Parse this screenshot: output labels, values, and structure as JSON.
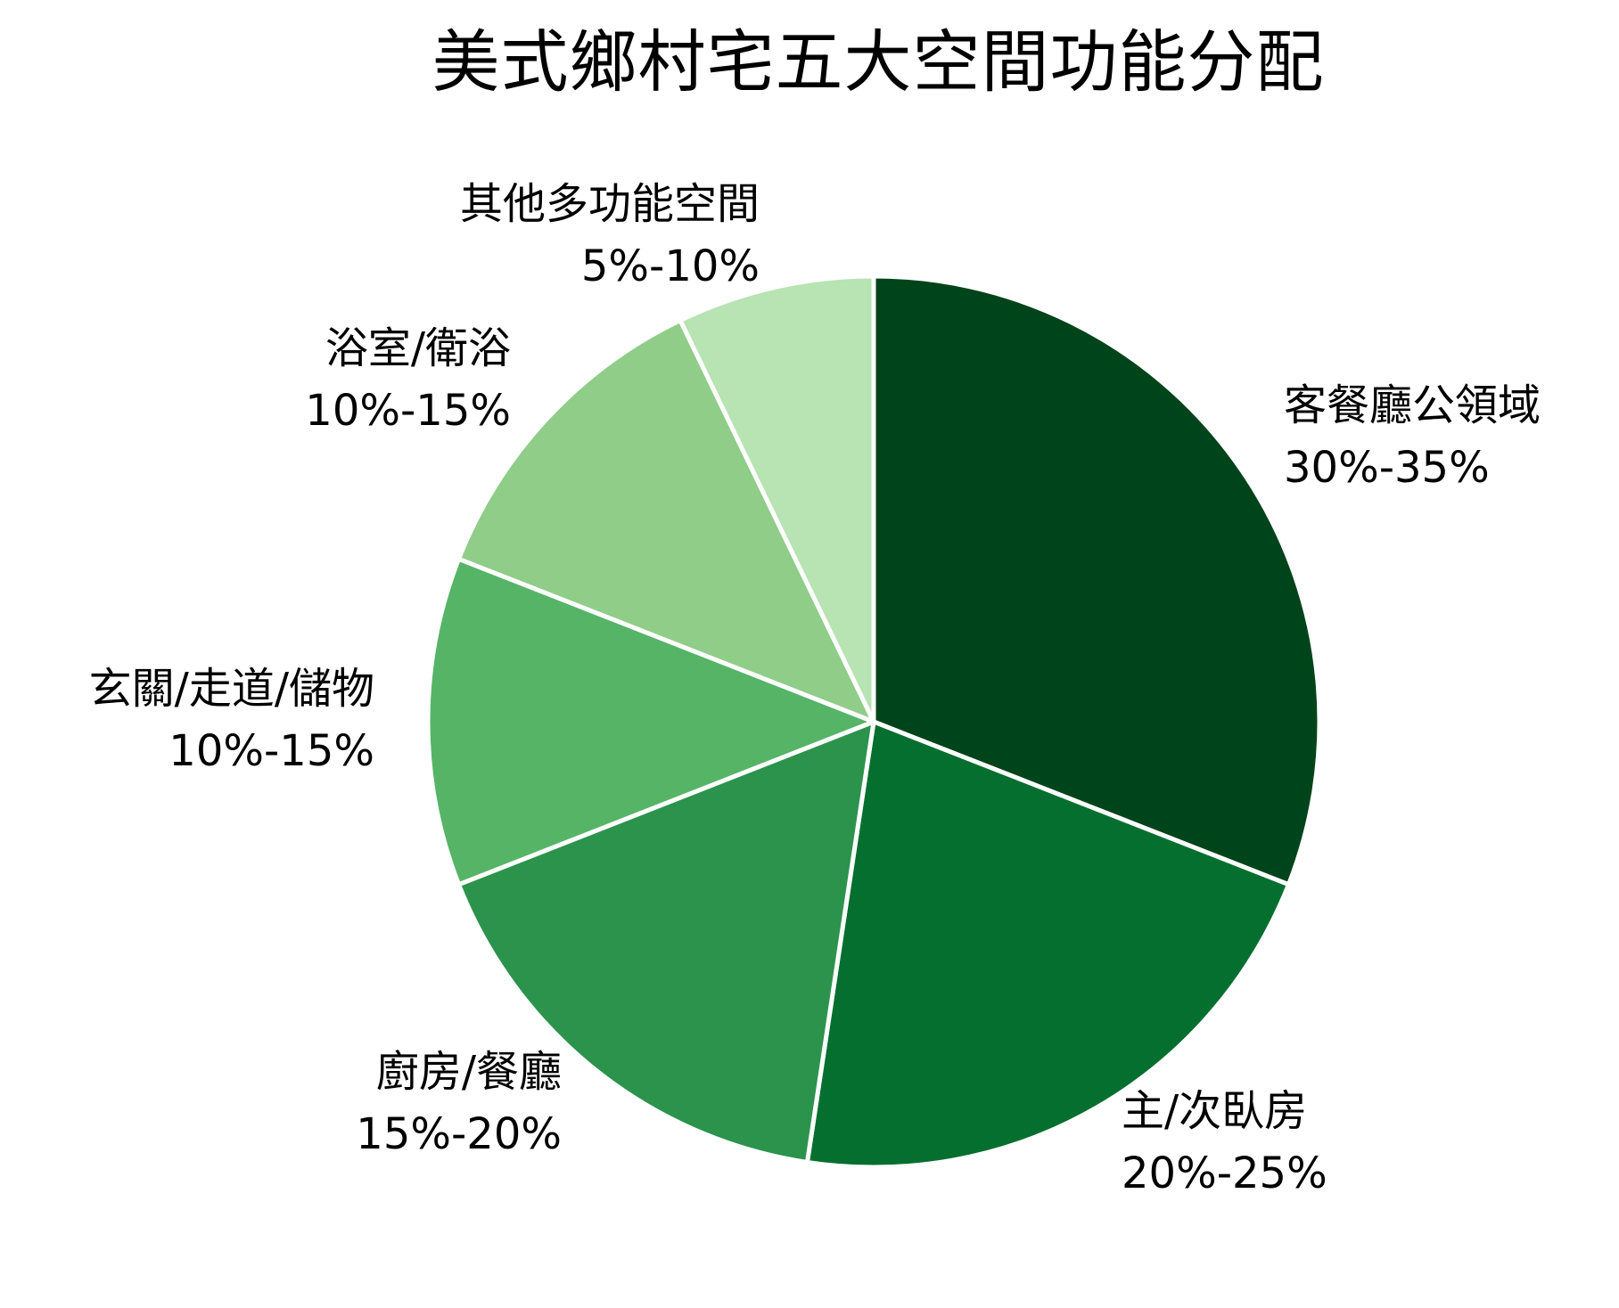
{
  "chart_data": {
    "type": "pie",
    "title": "美式鄉村宅五大空間功能分配",
    "start_angle": "12 o'clock, clockwise",
    "categories": [
      "客餐廳公領域",
      "主/次臥房",
      "廚房/餐廳",
      "玄關/走道/儲物",
      "浴室/衛浴",
      "其他多功能空間"
    ],
    "range_labels": [
      "30%-35%",
      "20%-25%",
      "15%-20%",
      "10%-15%",
      "10%-15%",
      "5%-10%"
    ],
    "values": [
      32.5,
      22.5,
      17.5,
      12.5,
      12.5,
      7.5
    ],
    "colors": [
      "#00441b",
      "#056f2f",
      "#2c934d",
      "#56b467",
      "#8fcd89",
      "#b8e3b3"
    ],
    "legend": "none (direct labels)"
  },
  "title": "美式鄉村宅五大空間功能分配",
  "labels": [
    {
      "name": "客餐廳公領域",
      "range": "30%-35%"
    },
    {
      "name": "主/次臥房",
      "range": "20%-25%"
    },
    {
      "name": "廚房/餐廳",
      "range": "15%-20%"
    },
    {
      "name": "玄關/走道/儲物",
      "range": "10%-15%"
    },
    {
      "name": "浴室/衛浴",
      "range": "10%-15%"
    },
    {
      "name": "其他多功能空間",
      "range": "5%-10%"
    }
  ]
}
